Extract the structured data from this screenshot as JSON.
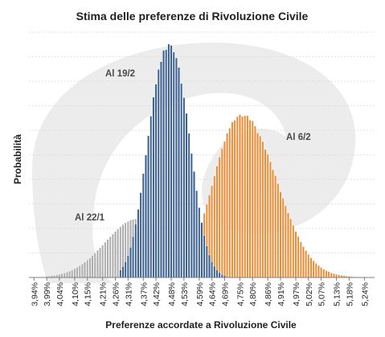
{
  "chart_data": {
    "type": "bar",
    "title": "Stima delle preferenze di Rivoluzione Civile",
    "xlabel": "Preferenze accordate a Rivoluzione Civile",
    "ylabel": "Probabilità",
    "x_unit": "%",
    "xlim": [
      3.92,
      5.28
    ],
    "ylim": [
      0,
      1
    ],
    "grid": true,
    "legend": "none",
    "x_tick_labels": [
      "3,94%",
      "3,99%",
      "4,04%",
      "4,10%",
      "4,15%",
      "4,21%",
      "4,26%",
      "4,31%",
      "4,37%",
      "4,42%",
      "4,48%",
      "4,53%",
      "4,59%",
      "4,64%",
      "4,69%",
      "4,75%",
      "4,80%",
      "4,86%",
      "4,91%",
      "4,97%",
      "5,02%",
      "5,07%",
      "5,13%",
      "5,18%",
      "5,24%"
    ],
    "annotations": [
      {
        "text": "Al 19/2",
        "series": "Al 19/2"
      },
      {
        "text": "Al 6/2",
        "series": "Al 6/2"
      },
      {
        "text": "Al 22/1",
        "series": "Al 22/1"
      }
    ],
    "series": [
      {
        "name": "Al 22/1",
        "color": "#a6a6a6",
        "fill_opacity": 0.92,
        "x": [
          3.99,
          4.0,
          4.01,
          4.02,
          4.03,
          4.04,
          4.05,
          4.06,
          4.07,
          4.08,
          4.09,
          4.1,
          4.11,
          4.12,
          4.13,
          4.14,
          4.15,
          4.16,
          4.17,
          4.18,
          4.19,
          4.2,
          4.21,
          4.22,
          4.23,
          4.24,
          4.25,
          4.26,
          4.27,
          4.28,
          4.29,
          4.3,
          4.31,
          4.32,
          4.33,
          4.34,
          4.35,
          4.36,
          4.37,
          4.38,
          4.39,
          4.4,
          4.41,
          4.42,
          4.43,
          4.44,
          4.45,
          4.46,
          4.47,
          4.48,
          4.49,
          4.5,
          4.51,
          4.52,
          4.53,
          4.54,
          4.55,
          4.56,
          4.57,
          4.58,
          4.59,
          4.6,
          4.61,
          4.62,
          4.63,
          4.64,
          4.65,
          4.66,
          4.67,
          4.68,
          4.69,
          4.7,
          4.71,
          4.72,
          4.73,
          4.74,
          4.75,
          4.76,
          4.77,
          4.78,
          4.79,
          4.8,
          4.81,
          4.82,
          4.83,
          4.84
        ],
        "values": [
          0.005,
          0.006,
          0.008,
          0.009,
          0.011,
          0.013,
          0.016,
          0.019,
          0.022,
          0.026,
          0.031,
          0.036,
          0.042,
          0.048,
          0.055,
          0.063,
          0.071,
          0.08,
          0.09,
          0.1,
          0.111,
          0.121,
          0.132,
          0.144,
          0.155,
          0.166,
          0.177,
          0.188,
          0.198,
          0.207,
          0.216,
          0.223,
          0.229,
          0.234,
          0.237,
          0.239,
          0.239,
          0.237,
          0.234,
          0.229,
          0.223,
          0.216,
          0.207,
          0.198,
          0.188,
          0.177,
          0.166,
          0.155,
          0.144,
          0.132,
          0.121,
          0.111,
          0.1,
          0.09,
          0.08,
          0.071,
          0.063,
          0.055,
          0.048,
          0.042,
          0.036,
          0.031,
          0.026,
          0.022,
          0.019,
          0.016,
          0.013,
          0.011,
          0.009,
          0.008,
          0.006,
          0.005,
          0.004,
          0.003,
          0.003,
          0.002,
          0.002,
          0.001,
          0.001,
          0.001,
          0.001,
          0.001,
          0.0,
          0.0,
          0.0,
          0.0
        ]
      },
      {
        "name": "Al 6/2",
        "color": "#e8892f",
        "fill_opacity": 0.97,
        "x": [
          4.48,
          4.49,
          4.5,
          4.51,
          4.52,
          4.53,
          4.54,
          4.55,
          4.56,
          4.57,
          4.58,
          4.59,
          4.6,
          4.61,
          4.62,
          4.63,
          4.64,
          4.65,
          4.66,
          4.67,
          4.68,
          4.69,
          4.7,
          4.71,
          4.72,
          4.73,
          4.74,
          4.75,
          4.76,
          4.77,
          4.78,
          4.79,
          4.8,
          4.81,
          4.82,
          4.83,
          4.84,
          4.85,
          4.86,
          4.87,
          4.88,
          4.89,
          4.9,
          4.91,
          4.92,
          4.93,
          4.94,
          4.95,
          4.96,
          4.97,
          4.98,
          4.99,
          5.0,
          5.01,
          5.02,
          5.03,
          5.04,
          5.05,
          5.06,
          5.07,
          5.08,
          5.09,
          5.1,
          5.11,
          5.12,
          5.13,
          5.14,
          5.15,
          5.16,
          5.17,
          5.18,
          5.19,
          5.2,
          5.21,
          5.22,
          5.23,
          5.24,
          5.25
        ],
        "values": [
          0.024,
          0.029,
          0.036,
          0.044,
          0.053,
          0.064,
          0.077,
          0.093,
          0.113,
          0.137,
          0.163,
          0.191,
          0.225,
          0.262,
          0.298,
          0.336,
          0.374,
          0.414,
          0.454,
          0.491,
          0.526,
          0.555,
          0.588,
          0.609,
          0.634,
          0.641,
          0.656,
          0.664,
          0.657,
          0.66,
          0.66,
          0.642,
          0.638,
          0.617,
          0.589,
          0.577,
          0.554,
          0.522,
          0.502,
          0.472,
          0.439,
          0.415,
          0.383,
          0.349,
          0.323,
          0.292,
          0.263,
          0.239,
          0.212,
          0.188,
          0.167,
          0.145,
          0.126,
          0.11,
          0.094,
          0.08,
          0.068,
          0.058,
          0.049,
          0.041,
          0.034,
          0.028,
          0.024,
          0.019,
          0.016,
          0.013,
          0.011,
          0.009,
          0.007,
          0.006,
          0.005,
          0.004,
          0.003,
          0.002,
          0.002,
          0.001,
          0.001,
          0.001
        ]
      },
      {
        "name": "Al 19/2",
        "color": "#3b5f8e",
        "fill_opacity": 1,
        "x": [
          4.28,
          4.29,
          4.3,
          4.31,
          4.32,
          4.33,
          4.34,
          4.35,
          4.36,
          4.37,
          4.38,
          4.39,
          4.4,
          4.41,
          4.42,
          4.43,
          4.44,
          4.45,
          4.46,
          4.47,
          4.48,
          4.49,
          4.5,
          4.51,
          4.52,
          4.53,
          4.54,
          4.55,
          4.56,
          4.57,
          4.58,
          4.59,
          4.6,
          4.61,
          4.62,
          4.63,
          4.64,
          4.65,
          4.66,
          4.67,
          4.68,
          4.69
        ],
        "values": [
          0.03,
          0.045,
          0.064,
          0.089,
          0.123,
          0.166,
          0.218,
          0.278,
          0.346,
          0.424,
          0.499,
          0.578,
          0.658,
          0.735,
          0.788,
          0.848,
          0.88,
          0.926,
          0.929,
          0.952,
          0.946,
          0.919,
          0.895,
          0.856,
          0.791,
          0.733,
          0.669,
          0.588,
          0.506,
          0.432,
          0.354,
          0.285,
          0.224,
          0.172,
          0.129,
          0.092,
          0.065,
          0.046,
          0.031,
          0.02,
          0.013,
          0.008
        ]
      }
    ]
  }
}
